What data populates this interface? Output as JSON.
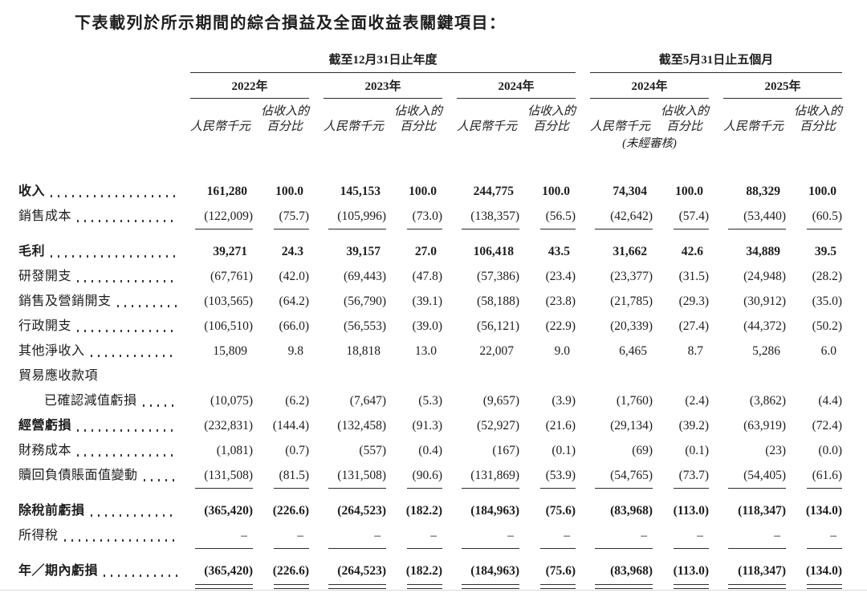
{
  "title": "下表載列於所示期間的綜合損益及全面收益表關鍵項目：",
  "table": {
    "period_groups": [
      {
        "label": "截至12月31日止年度",
        "years": 3
      },
      {
        "label": "截至5月31日止五個月",
        "years": 2
      }
    ],
    "columns": [
      {
        "year": "2022年",
        "note": ""
      },
      {
        "year": "2023年",
        "note": ""
      },
      {
        "year": "2024年",
        "note": ""
      },
      {
        "year": "2024年",
        "note": "(未經審核)"
      },
      {
        "year": "2025年",
        "note": ""
      }
    ],
    "subheader": {
      "amount": "人民幣千元",
      "pct_line1": "佔收入的",
      "pct_line2": "百分比"
    },
    "rows": [
      {
        "spacer": 26
      },
      {
        "label": "收入",
        "bold": true,
        "vbold": true,
        "values": [
          "161,280",
          "100.0",
          "145,153",
          "100.0",
          "244,775",
          "100.0",
          "74,304",
          "100.0",
          "88,329",
          "100.0"
        ]
      },
      {
        "label": "銷售成本",
        "values": [
          "(122,009)",
          "(75.7)",
          "(105,996)",
          "(73.0)",
          "(138,357)",
          "(56.5)",
          "(42,642)",
          "(57.4)",
          "(53,440)",
          "(60.5)"
        ]
      },
      {
        "rule": "single"
      },
      {
        "label": "毛利",
        "bold": true,
        "vbold": true,
        "values": [
          "39,271",
          "24.3",
          "39,157",
          "27.0",
          "106,418",
          "43.5",
          "31,662",
          "42.6",
          "34,889",
          "39.5"
        ]
      },
      {
        "label": "研發開支",
        "values": [
          "(67,761)",
          "(42.0)",
          "(69,443)",
          "(47.8)",
          "(57,386)",
          "(23.4)",
          "(23,377)",
          "(31.5)",
          "(24,948)",
          "(28.2)"
        ]
      },
      {
        "label": "銷售及營銷開支",
        "values": [
          "(103,565)",
          "(64.2)",
          "(56,790)",
          "(39.1)",
          "(58,188)",
          "(23.8)",
          "(21,785)",
          "(29.3)",
          "(30,912)",
          "(35.0)"
        ]
      },
      {
        "label": "行政開支",
        "values": [
          "(106,510)",
          "(66.0)",
          "(56,553)",
          "(39.0)",
          "(56,121)",
          "(22.9)",
          "(20,339)",
          "(27.4)",
          "(44,372)",
          "(50.2)"
        ]
      },
      {
        "label": "其他淨收入",
        "values": [
          "15,809",
          "9.8",
          "18,818",
          "13.0",
          "22,007",
          "9.0",
          "6,465",
          "8.7",
          "5,286",
          "6.0"
        ]
      },
      {
        "label": "貿易應收款項",
        "leader": false,
        "values": null
      },
      {
        "label": "已確認減值虧損",
        "indent": true,
        "values": [
          "(10,075)",
          "(6.2)",
          "(7,647)",
          "(5.3)",
          "(9,657)",
          "(3.9)",
          "(1,760)",
          "(2.4)",
          "(3,862)",
          "(4.4)"
        ]
      },
      {
        "label": "經營虧損",
        "bold": true,
        "values": [
          "(232,831)",
          "(144.4)",
          "(132,458)",
          "(91.3)",
          "(52,927)",
          "(21.6)",
          "(29,134)",
          "(39.2)",
          "(63,919)",
          "(72.4)"
        ]
      },
      {
        "label": "財務成本",
        "values": [
          "(1,081)",
          "(0.7)",
          "(557)",
          "(0.4)",
          "(167)",
          "(0.1)",
          "(69)",
          "(0.1)",
          "(23)",
          "(0.0)"
        ]
      },
      {
        "label": "贖回負債賬面值變動",
        "values": [
          "(131,508)",
          "(81.5)",
          "(131,508)",
          "(90.6)",
          "(131,869)",
          "(53.9)",
          "(54,765)",
          "(73.7)",
          "(54,405)",
          "(61.6)"
        ]
      },
      {
        "rule": "single"
      },
      {
        "label": "除稅前虧損",
        "bold": true,
        "vbold": true,
        "values": [
          "(365,420)",
          "(226.6)",
          "(264,523)",
          "(182.2)",
          "(184,963)",
          "(75.6)",
          "(83,968)",
          "(113.0)",
          "(118,347)",
          "(134.0)"
        ]
      },
      {
        "label": "所得稅",
        "values": [
          "–",
          "–",
          "–",
          "–",
          "–",
          "–",
          "–",
          "–",
          "–",
          "–"
        ]
      },
      {
        "rule": "single"
      },
      {
        "label": "年／期內虧損",
        "bold": true,
        "vbold": true,
        "values": [
          "(365,420)",
          "(226.6)",
          "(264,523)",
          "(182.2)",
          "(184,963)",
          "(75.6)",
          "(83,968)",
          "(113.0)",
          "(118,347)",
          "(134.0)"
        ]
      },
      {
        "rule": "double"
      }
    ]
  }
}
